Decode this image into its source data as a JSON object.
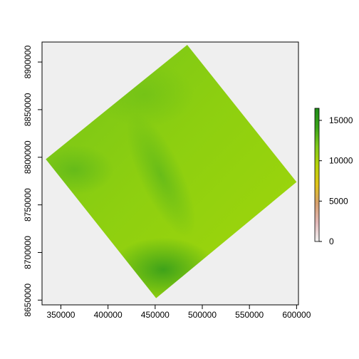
{
  "chart_data": {
    "type": "heatmap",
    "title": "",
    "xlabel": "",
    "ylabel": "",
    "x_range": [
      330000,
      602000
    ],
    "y_range": [
      8645000,
      8921000
    ],
    "x_ticks": [
      350000,
      400000,
      450000,
      500000,
      550000,
      600000
    ],
    "x_tick_labels": [
      "350000",
      "400000",
      "450000",
      "500000",
      "550000",
      "600000"
    ],
    "y_ticks": [
      8650000,
      8700000,
      8750000,
      8800000,
      8850000,
      8900000
    ],
    "y_tick_labels": [
      "8650000",
      "8700000",
      "8750000",
      "8800000",
      "8850000",
      "8900000"
    ],
    "background_color": "#efefef",
    "raster_footprint": [
      {
        "x": 484000,
        "y": 8918000
      },
      {
        "x": 600000,
        "y": 8774000
      },
      {
        "x": 451000,
        "y": 8652000
      },
      {
        "x": 334000,
        "y": 8798000
      }
    ],
    "legend": {
      "position": "right",
      "range": [
        0,
        16500
      ],
      "ticks": [
        0,
        5000,
        10000,
        15000
      ],
      "tick_labels": [
        "0",
        "5000",
        "10000",
        "15000"
      ],
      "colors": [
        "#f2f2f2",
        "#e2b8b8",
        "#d7a06e",
        "#e0c419",
        "#b7d308",
        "#7fc91a",
        "#3aa418",
        "#1e8c18"
      ]
    },
    "dominant_color": "#8fd00f",
    "dark_color": "#2f9a1c"
  }
}
